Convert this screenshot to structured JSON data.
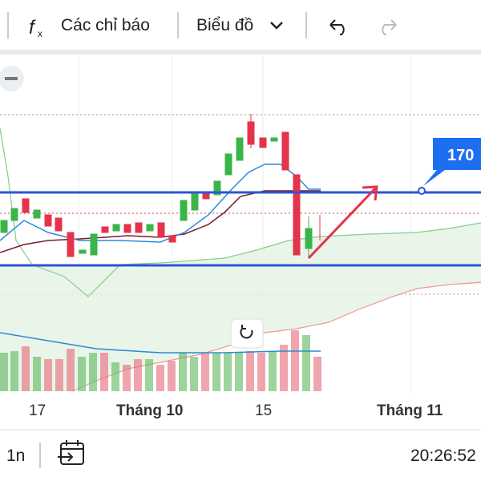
{
  "toolbar": {
    "indicators": "Các chỉ báo",
    "chart": "Biểu đồ"
  },
  "price_label": "170",
  "x_axis": [
    "17",
    "Tháng 10",
    "15",
    "Tháng 11"
  ],
  "footer": {
    "interval": "1n",
    "time": "20:26:52"
  }
}
